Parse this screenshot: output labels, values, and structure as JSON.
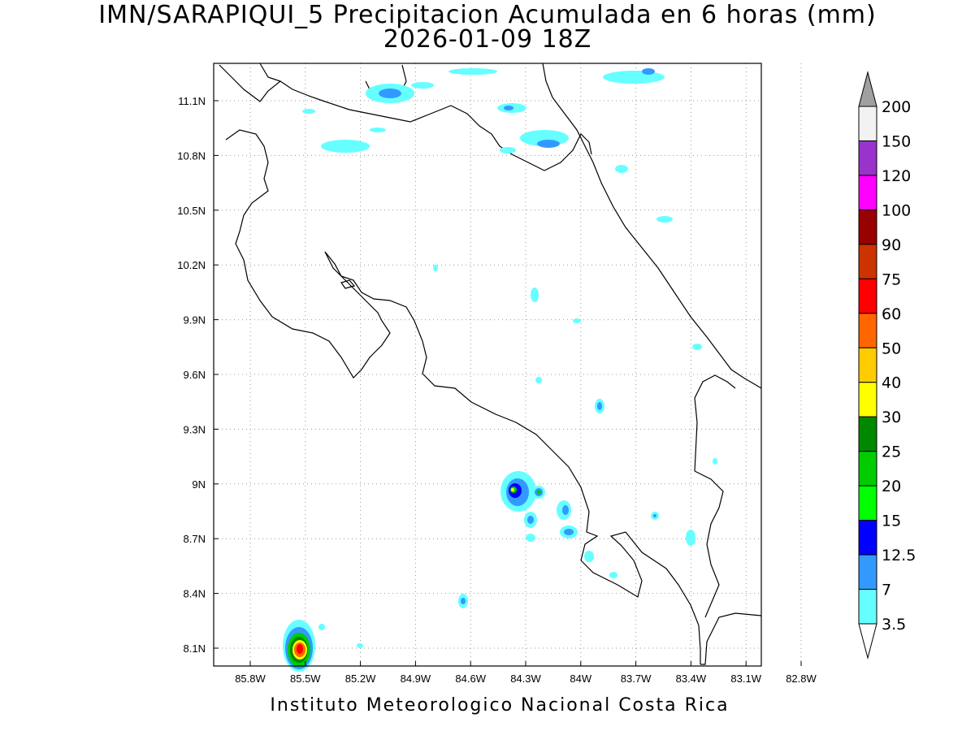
{
  "title": {
    "line1": "IMN/SARAPIQUI_5 Precipitacion Acumulada en 6 horas (mm)",
    "line2": "2026-01-09 18Z"
  },
  "footer": "Instituto Meteorologico Nacional Costa Rica",
  "axes": {
    "lon_ticks": [
      "85.8W",
      "85.5W",
      "85.2W",
      "84.9W",
      "84.6W",
      "84.3W",
      "84W",
      "83.7W",
      "83.4W",
      "83.1W",
      "82.8W"
    ],
    "lat_ticks": [
      "11.1N",
      "10.8N",
      "10.5N",
      "10.2N",
      "9.9N",
      "9.6N",
      "9.3N",
      "9N",
      "8.7N",
      "8.4N",
      "8.1N"
    ],
    "grid": true
  },
  "colorbar": {
    "levels": [
      "200",
      "150",
      "120",
      "100",
      "90",
      "75",
      "60",
      "50",
      "40",
      "30",
      "25",
      "20",
      "15",
      "12.5",
      "7",
      "3.5"
    ],
    "colors": [
      "#f2f2f2",
      "#9933cc",
      "#ff00ff",
      "#990000",
      "#cc3300",
      "#ff0000",
      "#ff6600",
      "#ffcc00",
      "#ffff00",
      "#008800",
      "#00cc00",
      "#00ff00",
      "#0000ff",
      "#3399ff",
      "#66ffff"
    ],
    "top_arrow_color": "#a0a0a0",
    "bottom_arrow_color": "#ffffff"
  }
}
